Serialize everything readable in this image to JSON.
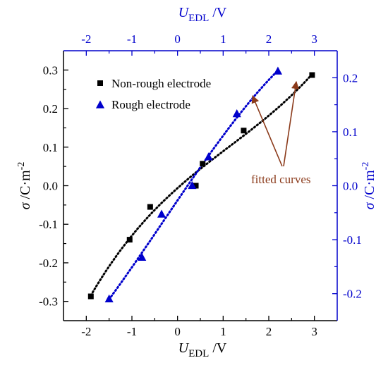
{
  "chart_data": {
    "type": "scatter",
    "axes": {
      "bottom": {
        "label_main": "U",
        "label_sub": "EDL",
        "label_unit": " /V",
        "range": [
          -2.5,
          3.5
        ],
        "ticks": [
          -2,
          -1,
          0,
          1,
          2,
          3
        ],
        "tick_labels": [
          "-2",
          "-1",
          "0",
          "1",
          "2",
          "3"
        ]
      },
      "top": {
        "label_main": "U",
        "label_sub": "EDL",
        "label_unit": " /V",
        "range": [
          -2.5,
          3.5
        ],
        "ticks": [
          -2,
          -1,
          0,
          1,
          2,
          3
        ],
        "tick_labels": [
          "-2",
          "-1",
          "0",
          "1",
          "2",
          "3"
        ],
        "color": "#0000cc"
      },
      "left": {
        "label_sigma": "σ",
        "label_unit": " /C·m",
        "label_sup": "-2",
        "range": [
          -0.35,
          0.35
        ],
        "ticks": [
          -0.3,
          -0.2,
          -0.1,
          0.0,
          0.1,
          0.2,
          0.3
        ],
        "tick_labels": [
          "-0.3",
          "-0.2",
          "-0.1",
          "0.0",
          "0.1",
          "0.2",
          "0.3"
        ]
      },
      "right": {
        "label_sigma": "σ",
        "label_unit": " /C·m",
        "label_sup": "-2",
        "range": [
          -0.25,
          0.25
        ],
        "ticks": [
          -0.2,
          -0.1,
          0.0,
          0.1,
          0.2
        ],
        "tick_labels": [
          "-0.2",
          "-0.1",
          "0.0",
          "0.1",
          "0.2"
        ],
        "color": "#0000cc"
      }
    },
    "series": [
      {
        "name": "Non-rough electrode",
        "marker": "square",
        "color": "#000000",
        "y_axis": "left",
        "x": [
          -1.9,
          -1.05,
          -0.6,
          0.4,
          0.55,
          1.45,
          2.95
        ],
        "y": [
          -0.287,
          -0.14,
          -0.055,
          0.0,
          0.057,
          0.143,
          0.287
        ]
      },
      {
        "name": "Rough electrode",
        "marker": "triangle",
        "color": "#0000cc",
        "y_axis": "right",
        "x": [
          -1.5,
          -0.78,
          -0.35,
          0.32,
          0.68,
          1.3,
          2.2
        ],
        "y": [
          -0.21,
          -0.133,
          -0.053,
          0.0,
          0.053,
          0.133,
          0.212
        ]
      }
    ],
    "legend": {
      "placement": "top-left"
    },
    "annotation": {
      "text": "fitted curves",
      "color": "#8b3a1a"
    },
    "grid": false
  }
}
